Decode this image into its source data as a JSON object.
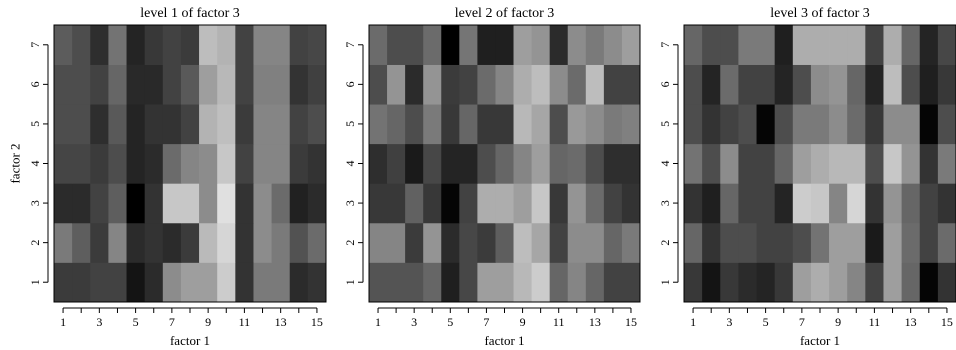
{
  "chart_data": [
    {
      "type": "heatmap",
      "title": "level 1 of factor 3",
      "xlabel": "factor 1",
      "ylabel": "factor 2",
      "x_tick_labels": [
        "1",
        "3",
        "5",
        "7",
        "9",
        "11",
        "13",
        "15"
      ],
      "y_tick_labels": [
        "1",
        "2",
        "3",
        "4",
        "5",
        "6",
        "7"
      ],
      "x": [
        1,
        2,
        3,
        4,
        5,
        6,
        7,
        8,
        9,
        10,
        11,
        12,
        13,
        14,
        15
      ],
      "y": [
        1,
        2,
        3,
        4,
        5,
        6,
        7
      ],
      "xlim": [
        0.5,
        15.5
      ],
      "ylim": [
        0.5,
        7.5
      ],
      "value_scale": "gray level, 0 = black, 1 = white",
      "values": [
        [
          0.23,
          0.23,
          0.26,
          0.26,
          0.08,
          0.17,
          0.55,
          0.62,
          0.62,
          0.8,
          0.2,
          0.48,
          0.48,
          0.17,
          0.2
        ],
        [
          0.48,
          0.37,
          0.23,
          0.52,
          0.17,
          0.2,
          0.17,
          0.23,
          0.73,
          0.84,
          0.2,
          0.55,
          0.48,
          0.32,
          0.42
        ],
        [
          0.17,
          0.17,
          0.26,
          0.37,
          0.0,
          0.2,
          0.78,
          0.78,
          0.55,
          0.88,
          0.2,
          0.55,
          0.42,
          0.13,
          0.17
        ],
        [
          0.27,
          0.27,
          0.23,
          0.3,
          0.14,
          0.17,
          0.42,
          0.52,
          0.55,
          0.78,
          0.26,
          0.52,
          0.52,
          0.23,
          0.2
        ],
        [
          0.3,
          0.3,
          0.18,
          0.35,
          0.14,
          0.2,
          0.2,
          0.26,
          0.7,
          0.75,
          0.23,
          0.52,
          0.52,
          0.26,
          0.3
        ],
        [
          0.3,
          0.3,
          0.26,
          0.4,
          0.16,
          0.16,
          0.26,
          0.35,
          0.62,
          0.72,
          0.26,
          0.5,
          0.5,
          0.2,
          0.25
        ],
        [
          0.36,
          0.3,
          0.18,
          0.45,
          0.14,
          0.22,
          0.26,
          0.23,
          0.74,
          0.7,
          0.26,
          0.52,
          0.52,
          0.26,
          0.28
        ]
      ]
    },
    {
      "type": "heatmap",
      "title": "level 2 of factor 3",
      "xlabel": "factor 1",
      "ylabel": "",
      "x_tick_labels": [
        "1",
        "3",
        "5",
        "7",
        "9",
        "11",
        "13",
        "15"
      ],
      "y_tick_labels": [
        "1",
        "2",
        "3",
        "4",
        "5",
        "6",
        "7"
      ],
      "x": [
        1,
        2,
        3,
        4,
        5,
        6,
        7,
        8,
        9,
        10,
        11,
        12,
        13,
        14,
        15
      ],
      "y": [
        1,
        2,
        3,
        4,
        5,
        6,
        7
      ],
      "xlim": [
        0.5,
        15.5
      ],
      "ylim": [
        0.5,
        7.5
      ],
      "value_scale": "gray level, 0 = black, 1 = white",
      "values": [
        [
          0.33,
          0.33,
          0.33,
          0.4,
          0.12,
          0.28,
          0.62,
          0.62,
          0.72,
          0.8,
          0.4,
          0.52,
          0.4,
          0.26,
          0.26
        ],
        [
          0.52,
          0.52,
          0.23,
          0.58,
          0.17,
          0.28,
          0.23,
          0.37,
          0.74,
          0.65,
          0.26,
          0.55,
          0.55,
          0.4,
          0.48
        ],
        [
          0.22,
          0.22,
          0.38,
          0.22,
          0.02,
          0.26,
          0.68,
          0.68,
          0.62,
          0.78,
          0.22,
          0.58,
          0.42,
          0.26,
          0.2
        ],
        [
          0.18,
          0.25,
          0.1,
          0.28,
          0.14,
          0.14,
          0.3,
          0.4,
          0.52,
          0.62,
          0.4,
          0.42,
          0.3,
          0.18,
          0.18
        ],
        [
          0.45,
          0.4,
          0.3,
          0.48,
          0.22,
          0.4,
          0.22,
          0.22,
          0.72,
          0.65,
          0.3,
          0.6,
          0.55,
          0.48,
          0.5
        ],
        [
          0.3,
          0.58,
          0.17,
          0.58,
          0.23,
          0.26,
          0.42,
          0.52,
          0.68,
          0.74,
          0.55,
          0.42,
          0.74,
          0.26,
          0.26
        ],
        [
          0.42,
          0.3,
          0.3,
          0.42,
          0.0,
          0.46,
          0.12,
          0.12,
          0.62,
          0.58,
          0.17,
          0.55,
          0.48,
          0.55,
          0.62
        ]
      ]
    },
    {
      "type": "heatmap",
      "title": "level 3 of factor 3",
      "xlabel": "factor 1",
      "ylabel": "",
      "x_tick_labels": [
        "1",
        "3",
        "5",
        "7",
        "9",
        "11",
        "13",
        "15"
      ],
      "y_tick_labels": [
        "1",
        "2",
        "3",
        "4",
        "5",
        "6",
        "7"
      ],
      "x": [
        1,
        2,
        3,
        4,
        5,
        6,
        7,
        8,
        9,
        10,
        11,
        12,
        13,
        14,
        15
      ],
      "y": [
        1,
        2,
        3,
        4,
        5,
        6,
        7
      ],
      "xlim": [
        0.5,
        15.5
      ],
      "ylim": [
        0.5,
        7.5
      ],
      "value_scale": "gray level, 0 = black, 1 = white",
      "values": [
        [
          0.22,
          0.08,
          0.22,
          0.17,
          0.14,
          0.22,
          0.62,
          0.68,
          0.62,
          0.52,
          0.26,
          0.62,
          0.4,
          0.02,
          0.2
        ],
        [
          0.4,
          0.2,
          0.3,
          0.3,
          0.26,
          0.26,
          0.3,
          0.45,
          0.62,
          0.62,
          0.1,
          0.62,
          0.42,
          0.26,
          0.42
        ],
        [
          0.2,
          0.12,
          0.4,
          0.26,
          0.26,
          0.14,
          0.8,
          0.78,
          0.52,
          0.84,
          0.2,
          0.58,
          0.4,
          0.26,
          0.2
        ],
        [
          0.45,
          0.3,
          0.55,
          0.26,
          0.26,
          0.4,
          0.62,
          0.68,
          0.72,
          0.72,
          0.3,
          0.78,
          0.58,
          0.2,
          0.48
        ],
        [
          0.3,
          0.2,
          0.26,
          0.3,
          0.02,
          0.3,
          0.48,
          0.48,
          0.55,
          0.42,
          0.22,
          0.55,
          0.55,
          0.02,
          0.3
        ],
        [
          0.3,
          0.14,
          0.42,
          0.26,
          0.26,
          0.14,
          0.3,
          0.55,
          0.58,
          0.4,
          0.14,
          0.74,
          0.3,
          0.12,
          0.22
        ],
        [
          0.4,
          0.3,
          0.3,
          0.48,
          0.48,
          0.12,
          0.68,
          0.68,
          0.68,
          0.68,
          0.26,
          0.68,
          0.4,
          0.14,
          0.28
        ]
      ]
    }
  ]
}
